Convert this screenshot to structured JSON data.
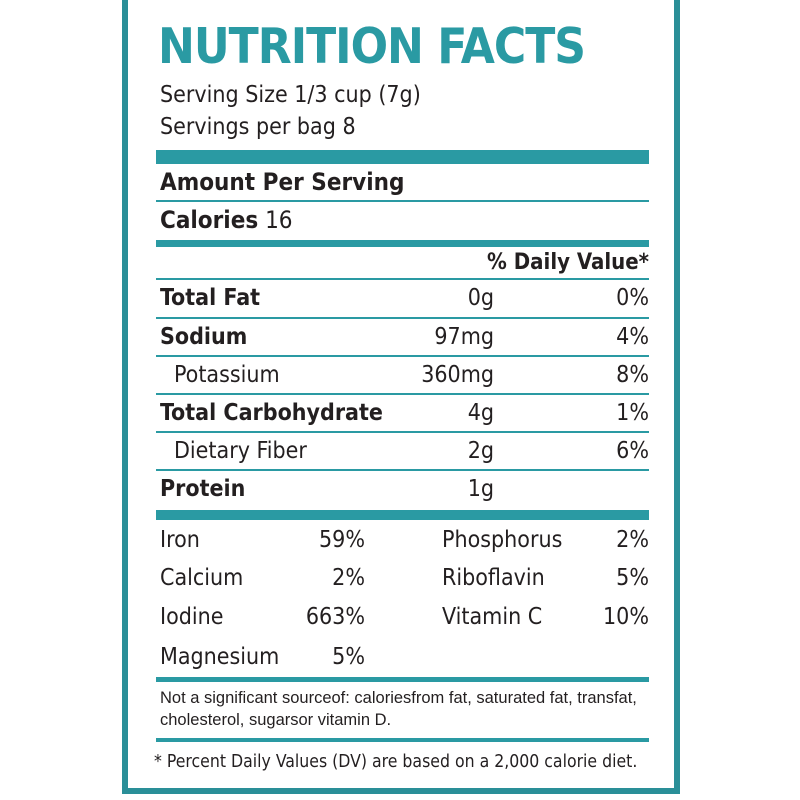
{
  "title": "NUTRITION FACTS",
  "serving_size": "Serving Size 1/3 cup (7g)",
  "servings_per": "Servings per bag 8",
  "amount_per_serving": "Amount Per Serving",
  "calories_label": "Calories",
  "calories_value": "16",
  "daily_value_header": "% Daily Value*",
  "nutrients": [
    {
      "name": "Total Fat",
      "amount": "0g",
      "dv": "0%"
    },
    {
      "name": "Sodium",
      "amount": "97mg",
      "dv": "4%"
    },
    {
      "name": "Potassium",
      "amount": "360mg",
      "dv": "8%"
    },
    {
      "name": "Total Carbohydrate",
      "amount": "4g",
      "dv": "1%"
    },
    {
      "name": "Dietary Fiber",
      "amount": "2g",
      "dv": "6%"
    },
    {
      "name": "Protein",
      "amount": "1g",
      "dv": ""
    }
  ],
  "minerals_left": [
    {
      "name": "Iron",
      "dv": "59%"
    },
    {
      "name": "Calcium",
      "dv": "2%"
    },
    {
      "name": "Iodine",
      "dv": "663%"
    },
    {
      "name": "Magnesium",
      "dv": "5%"
    }
  ],
  "minerals_right": [
    {
      "name": "Phosphorus",
      "dv": "2%"
    },
    {
      "name": "Riboflavin",
      "dv": "5%"
    },
    {
      "name": "Vitamin C",
      "dv": "10%"
    }
  ],
  "not_significant": "Not a significant sourceof: caloriesfrom fat, saturated fat, transfat, cholesterol, sugarsor vitamin D.",
  "footnote": "* Percent Daily Values (DV) are based on a 2,000 calorie diet.",
  "colors": {
    "accent": "#2a9aa3",
    "border": "#2a8f98",
    "text": "#231f20"
  }
}
